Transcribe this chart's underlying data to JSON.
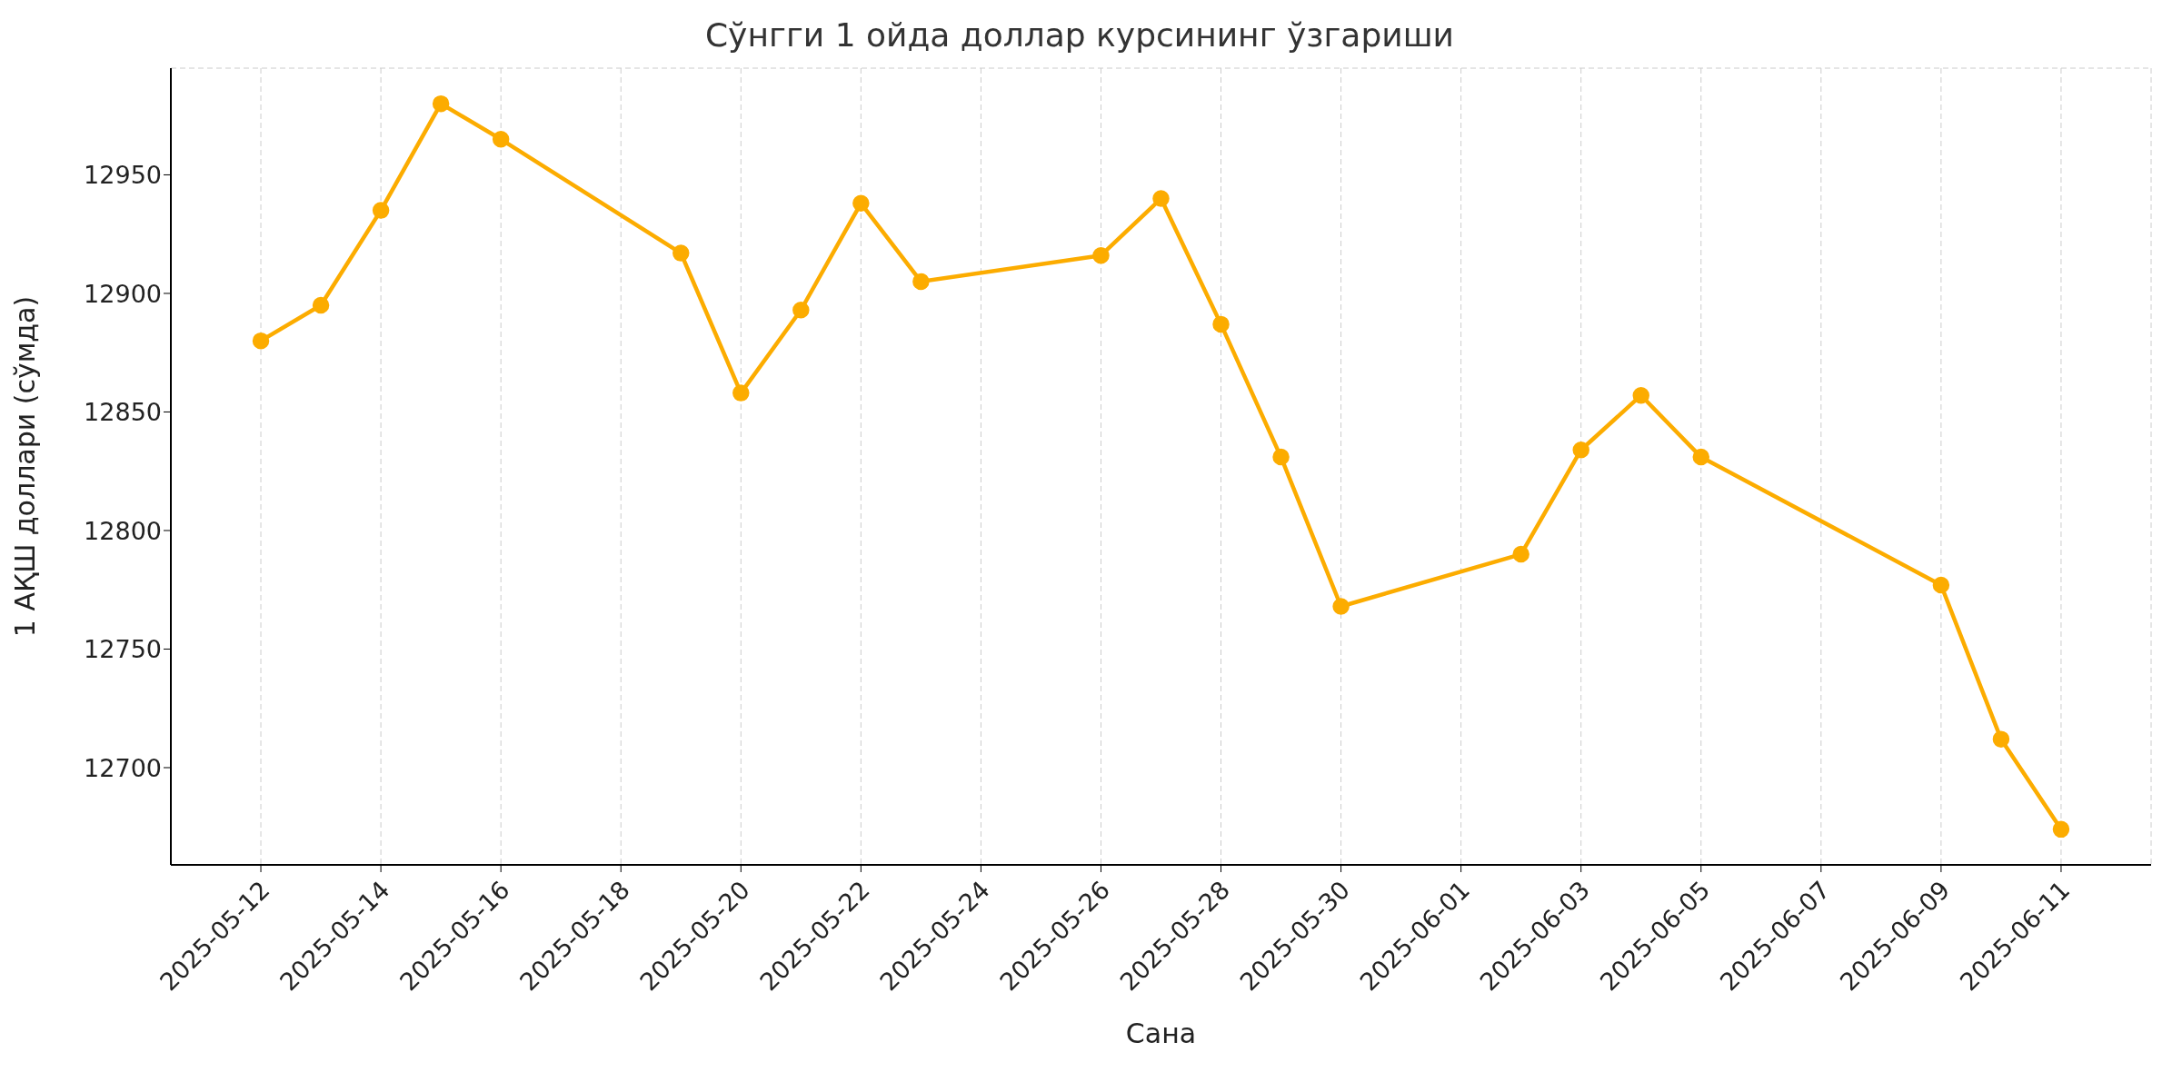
{
  "chart_data": {
    "type": "line",
    "title": "Сўнгги 1 ойда доллар курсининг ўзгариши",
    "xlabel": "Сана",
    "ylabel": "1 АҚШ доллари (сўмда)",
    "x": [
      "2025-05-12",
      "2025-05-13",
      "2025-05-14",
      "2025-05-15",
      "2025-05-16",
      "2025-05-19",
      "2025-05-20",
      "2025-05-21",
      "2025-05-22",
      "2025-05-23",
      "2025-05-26",
      "2025-05-27",
      "2025-05-28",
      "2025-05-29",
      "2025-05-30",
      "2025-06-02",
      "2025-06-03",
      "2025-06-04",
      "2025-06-05",
      "2025-06-09",
      "2025-06-10",
      "2025-06-11"
    ],
    "series": [
      {
        "color": "#fcac00",
        "values": [
          12880,
          12895,
          12935,
          12980,
          12965,
          12917,
          12858,
          12893,
          12938,
          12905,
          12916,
          12940,
          12887,
          12831,
          12768,
          12790,
          12834,
          12857,
          12831,
          12777,
          12712,
          12674
        ]
      }
    ],
    "xlim": [
      "2025-05-10T12:00",
      "2025-06-12T12:00"
    ],
    "xticks": [
      "2025-05-12",
      "2025-05-14",
      "2025-05-16",
      "2025-05-18",
      "2025-05-20",
      "2025-05-22",
      "2025-05-24",
      "2025-05-26",
      "2025-05-28",
      "2025-05-30",
      "2025-06-01",
      "2025-06-03",
      "2025-06-05",
      "2025-06-07",
      "2025-06-09",
      "2025-06-11"
    ],
    "ylim": [
      12659,
      12995
    ],
    "yticks": [
      12700,
      12750,
      12800,
      12850,
      12900,
      12950
    ],
    "grid": true,
    "marker": "circle",
    "line_style": "solid"
  }
}
